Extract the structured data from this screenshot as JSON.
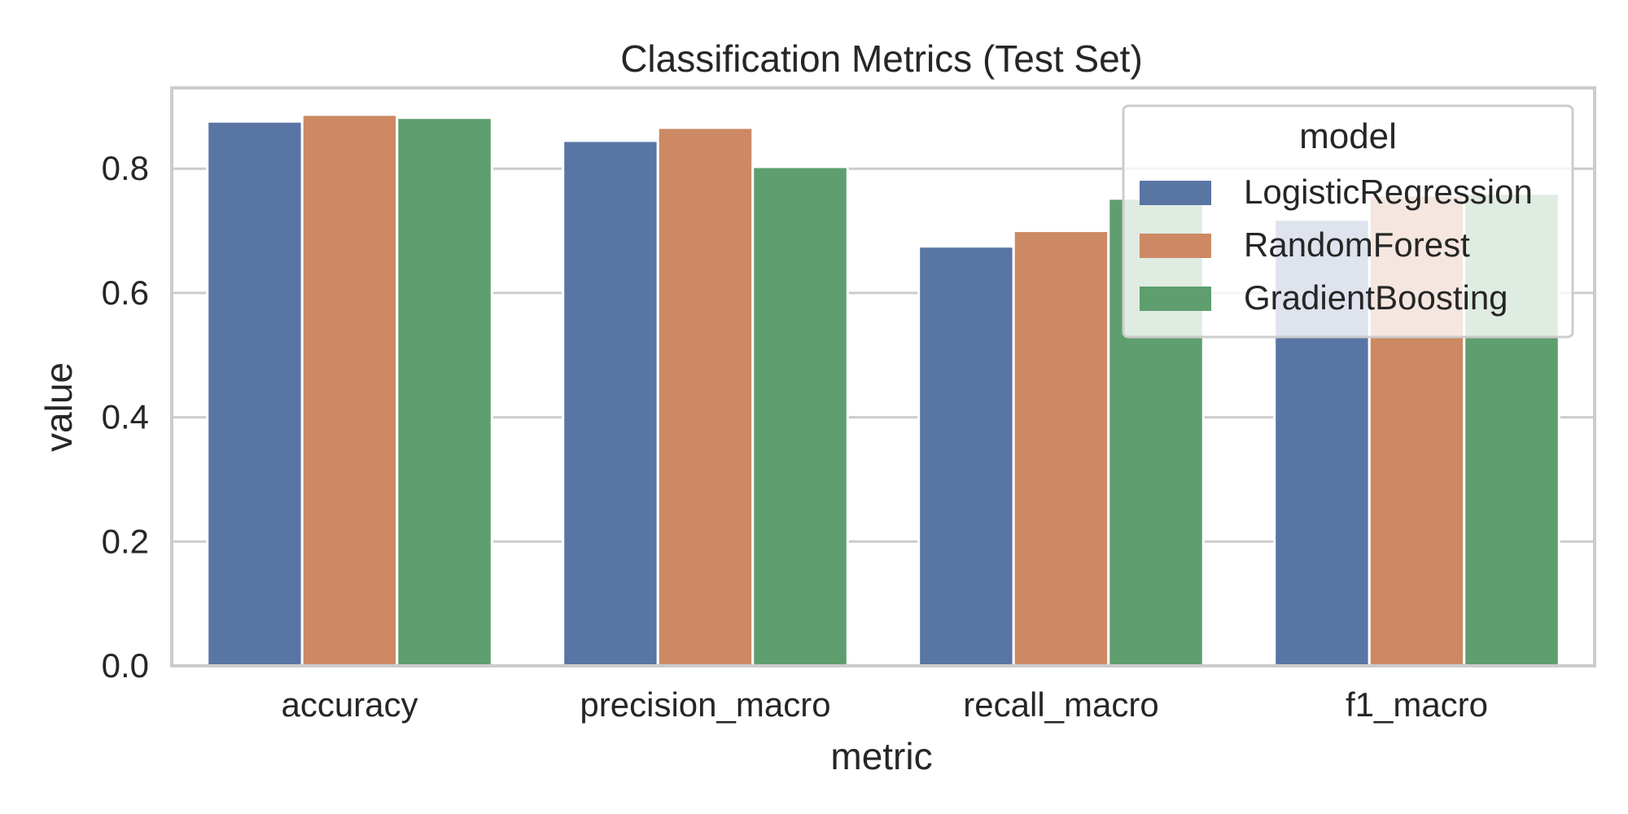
{
  "chart_data": {
    "type": "bar",
    "title": "Classification Metrics (Test Set)",
    "xlabel": "metric",
    "ylabel": "value",
    "categories": [
      "accuracy",
      "precision_macro",
      "recall_macro",
      "f1_macro"
    ],
    "ylim": [
      0,
      0.93
    ],
    "yticks": [
      "0.0",
      "0.2",
      "0.4",
      "0.6",
      "0.8"
    ],
    "grid": true,
    "legend": {
      "title": "model",
      "placement": "top-right"
    },
    "series": [
      {
        "name": "LogisticRegression",
        "color": "#5975a4",
        "values": [
          0.876,
          0.845,
          0.675,
          0.718
        ]
      },
      {
        "name": "RandomForest",
        "color": "#cc8963",
        "values": [
          0.887,
          0.866,
          0.7,
          0.757
        ]
      },
      {
        "name": "GradientBoosting",
        "color": "#5f9e6e",
        "values": [
          0.882,
          0.803,
          0.752,
          0.76
        ]
      }
    ]
  }
}
